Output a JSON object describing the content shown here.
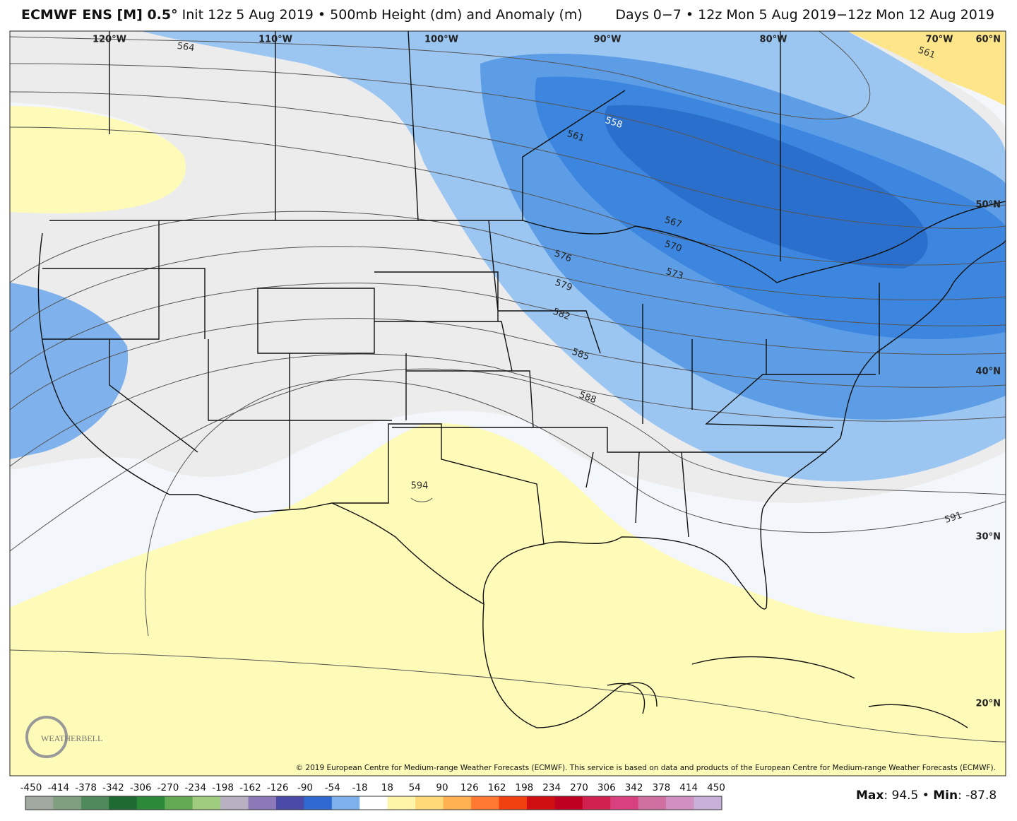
{
  "header": {
    "model": "ECMWF ENS [M] 0.5°",
    "description": "Init 12z 5 Aug 2019 • 500mb Height (dm) and Anomaly (m)",
    "period": "Days 0−7 • 12z Mon 5 Aug 2019−12z Mon 12 Aug 2019"
  },
  "map": {
    "longitude_labels": [
      "120°W",
      "110°W",
      "100°W",
      "90°W",
      "80°W",
      "70°W"
    ],
    "latitude_labels": [
      "60°N",
      "50°N",
      "40°N",
      "30°N",
      "20°N"
    ],
    "contour_labels": [
      564,
      561,
      561,
      558,
      567,
      570,
      573,
      576,
      579,
      582,
      585,
      588,
      591,
      594
    ],
    "logo": "WEATHERBELL",
    "copyright": "© 2019 European Centre for Medium-range Weather Forecasts (ECMWF). This service is based on data and products of the European Centre for Medium-range Weather Forecasts (ECMWF)."
  },
  "colorbar": {
    "ticks": [
      -450,
      -414,
      -378,
      -342,
      -306,
      -270,
      -234,
      -198,
      -162,
      -126,
      -90,
      -54,
      -18,
      18,
      54,
      90,
      126,
      162,
      198,
      234,
      270,
      306,
      342,
      378,
      414,
      450
    ]
  },
  "stats": {
    "max_label": "Max",
    "max_value": 94.5,
    "min_label": "Min",
    "min_value": -87.8
  }
}
